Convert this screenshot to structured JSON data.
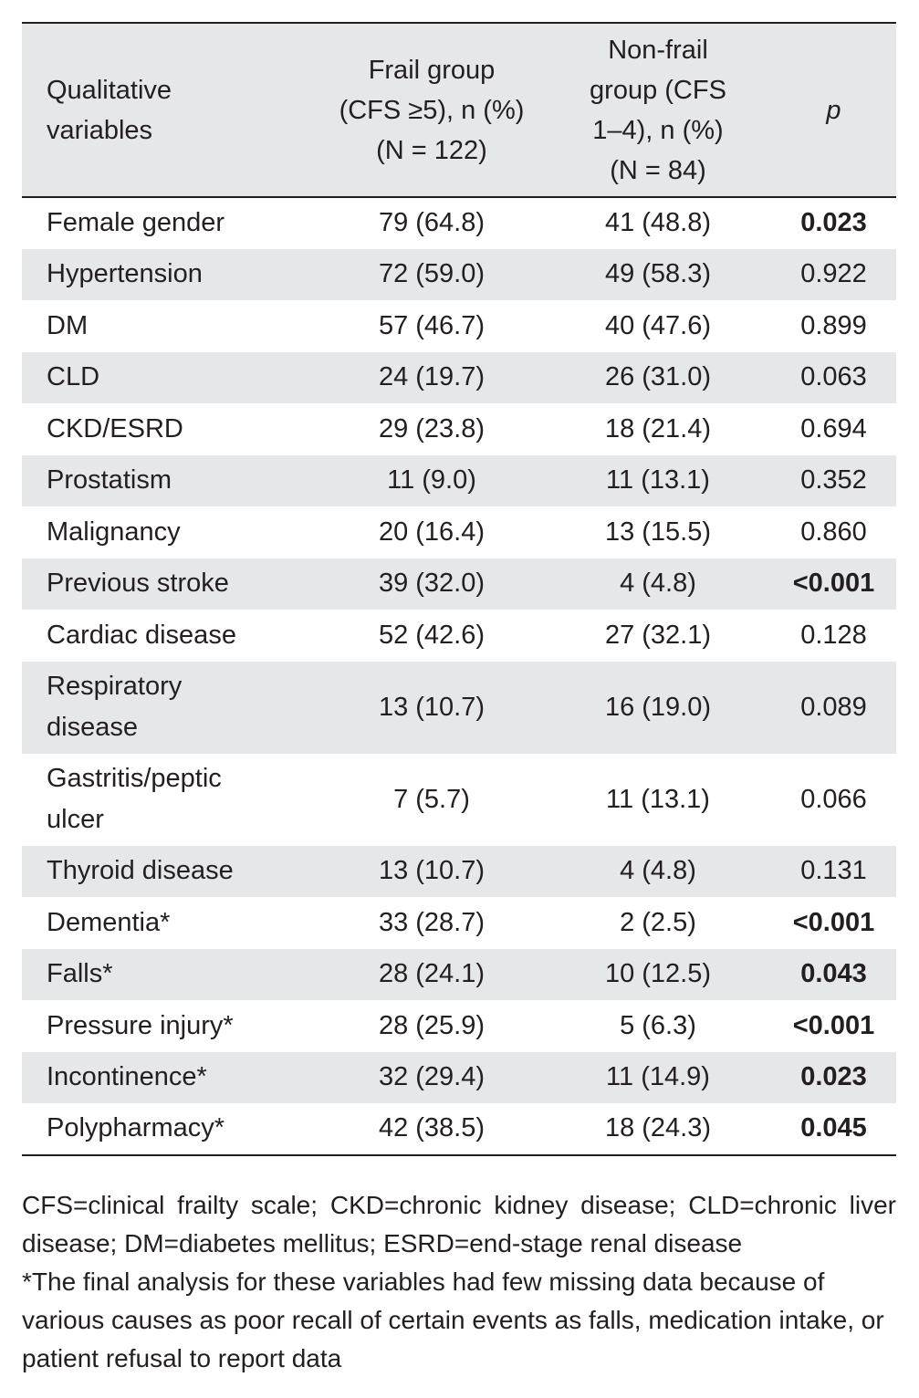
{
  "header": {
    "col1": [
      "Qualitative",
      "variables"
    ],
    "col2": [
      "Frail group",
      "(CFS ≥5), n (%)",
      "(N = 122)"
    ],
    "col3": [
      "Non-frail",
      "group (CFS",
      "1–4), n (%)",
      "(N = 84)"
    ],
    "col4": "p"
  },
  "rows": [
    {
      "variable": [
        "Female gender"
      ],
      "frail": "79 (64.8)",
      "nonfrail": "41 (48.8)",
      "p": "0.023",
      "significant": true
    },
    {
      "variable": [
        "Hypertension"
      ],
      "frail": "72 (59.0)",
      "nonfrail": "49 (58.3)",
      "p": "0.922",
      "significant": false
    },
    {
      "variable": [
        "DM"
      ],
      "frail": "57 (46.7)",
      "nonfrail": "40 (47.6)",
      "p": "0.899",
      "significant": false
    },
    {
      "variable": [
        "CLD"
      ],
      "frail": "24 (19.7)",
      "nonfrail": "26 (31.0)",
      "p": "0.063",
      "significant": false
    },
    {
      "variable": [
        "CKD/ESRD"
      ],
      "frail": "29 (23.8)",
      "nonfrail": "18 (21.4)",
      "p": "0.694",
      "significant": false
    },
    {
      "variable": [
        "Prostatism"
      ],
      "frail": "11 (9.0)",
      "nonfrail": "11 (13.1)",
      "p": "0.352",
      "significant": false
    },
    {
      "variable": [
        "Malignancy"
      ],
      "frail": "20 (16.4)",
      "nonfrail": "13 (15.5)",
      "p": "0.860",
      "significant": false
    },
    {
      "variable": [
        "Previous stroke"
      ],
      "frail": "39 (32.0)",
      "nonfrail": "4 (4.8)",
      "p": "<0.001",
      "significant": true
    },
    {
      "variable": [
        "Cardiac disease"
      ],
      "frail": "52 (42.6)",
      "nonfrail": "27 (32.1)",
      "p": "0.128",
      "significant": false
    },
    {
      "variable": [
        "Respiratory",
        "disease"
      ],
      "frail": "13 (10.7)",
      "nonfrail": "16 (19.0)",
      "p": "0.089",
      "significant": false
    },
    {
      "variable": [
        "Gastritis/peptic",
        "ulcer"
      ],
      "frail": "7 (5.7)",
      "nonfrail": "11 (13.1)",
      "p": "0.066",
      "significant": false
    },
    {
      "variable": [
        "Thyroid disease"
      ],
      "frail": "13 (10.7)",
      "nonfrail": "4 (4.8)",
      "p": "0.131",
      "significant": false
    },
    {
      "variable": [
        "Dementia*"
      ],
      "frail": "33 (28.7)",
      "nonfrail": "2 (2.5)",
      "p": "<0.001",
      "significant": true
    },
    {
      "variable": [
        "Falls*"
      ],
      "frail": "28 (24.1)",
      "nonfrail": "10 (12.5)",
      "p": "0.043",
      "significant": true
    },
    {
      "variable": [
        "Pressure injury*"
      ],
      "frail": "28 (25.9)",
      "nonfrail": "5 (6.3)",
      "p": "<0.001",
      "significant": true
    },
    {
      "variable": [
        "Incontinence*"
      ],
      "frail": "32 (29.4)",
      "nonfrail": "11 (14.9)",
      "p": "0.023",
      "significant": true
    },
    {
      "variable": [
        "Polypharmacy*"
      ],
      "frail": "42 (38.5)",
      "nonfrail": "18 (24.3)",
      "p": "0.045",
      "significant": true
    }
  ],
  "footnotes": {
    "abbreviations": "CFS=clinical frailty scale; CKD=chronic kidney disease; CLD=chronic liver disease; DM=diabetes mellitus; ESRD=end-stage renal disease",
    "missing_data": "*The final analysis for these variables had few missing data because of various causes as poor recall of certain events as falls, medication intake, or patient refusal to report data"
  }
}
